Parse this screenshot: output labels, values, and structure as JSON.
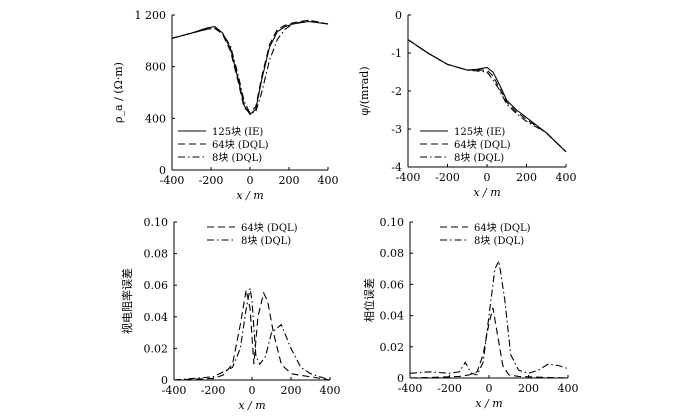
{
  "chart_data": [
    {
      "id": "rho",
      "type": "line",
      "title": "",
      "xlabel": "x / m",
      "ylabel": "ρ_a / (Ω·m)",
      "xlim": [
        -400,
        400
      ],
      "ylim": [
        0,
        1200
      ],
      "xticks": [
        "-400",
        "-200",
        "0",
        "200",
        "400"
      ],
      "yticks": [
        "0",
        "400",
        "800",
        "1 200"
      ],
      "legend_position": "bottom-left",
      "series": [
        {
          "name": "125块 (IE)",
          "style": "solid",
          "x": [
            -400,
            -300,
            -220,
            -180,
            -140,
            -100,
            -60,
            -30,
            0,
            30,
            60,
            100,
            140,
            180,
            220,
            300,
            400
          ],
          "y": [
            1020,
            1060,
            1100,
            1110,
            1060,
            940,
            700,
            500,
            430,
            470,
            700,
            950,
            1070,
            1110,
            1130,
            1150,
            1130
          ]
        },
        {
          "name": "64块 (DQL)",
          "style": "dashed",
          "x": [
            -400,
            -300,
            -220,
            -180,
            -140,
            -100,
            -60,
            -30,
            0,
            30,
            60,
            100,
            140,
            180,
            220,
            300,
            400
          ],
          "y": [
            1020,
            1060,
            1090,
            1100,
            1050,
            920,
            680,
            480,
            445,
            490,
            720,
            970,
            1090,
            1120,
            1140,
            1160,
            1130
          ]
        },
        {
          "name": "8块 (DQL)",
          "style": "dashdot",
          "x": [
            -400,
            -300,
            -220,
            -180,
            -140,
            -100,
            -60,
            -30,
            0,
            30,
            60,
            100,
            140,
            180,
            220,
            300,
            400
          ],
          "y": [
            1020,
            1060,
            1090,
            1095,
            1055,
            960,
            730,
            530,
            440,
            450,
            600,
            850,
            1010,
            1090,
            1130,
            1160,
            1130
          ]
        }
      ]
    },
    {
      "id": "phi",
      "type": "line",
      "title": "",
      "xlabel": "x / m",
      "ylabel": "φ/(mrad)",
      "xlim": [
        -400,
        400
      ],
      "ylim": [
        -4,
        0
      ],
      "xticks": [
        "-400",
        "-200",
        "0",
        "200",
        "400"
      ],
      "yticks": [
        "0",
        "-1",
        "-2",
        "-3",
        "-4"
      ],
      "legend_position": "bottom-right",
      "series": [
        {
          "name": "125块 (IE)",
          "style": "solid",
          "x": [
            -400,
            -300,
            -200,
            -100,
            -50,
            0,
            30,
            60,
            100,
            150,
            200,
            300,
            400
          ],
          "y": [
            -0.65,
            -1.0,
            -1.3,
            -1.45,
            -1.43,
            -1.38,
            -1.5,
            -1.8,
            -2.25,
            -2.5,
            -2.7,
            -3.1,
            -3.6
          ]
        },
        {
          "name": "64块 (DQL)",
          "style": "dashed",
          "x": [
            -400,
            -300,
            -200,
            -100,
            -50,
            0,
            30,
            60,
            100,
            150,
            200,
            300,
            400
          ],
          "y": [
            -0.65,
            -1.0,
            -1.3,
            -1.45,
            -1.45,
            -1.45,
            -1.6,
            -1.9,
            -2.3,
            -2.55,
            -2.75,
            -3.1,
            -3.6
          ]
        },
        {
          "name": "8块 (DQL)",
          "style": "dashdot",
          "x": [
            -400,
            -300,
            -200,
            -100,
            -50,
            0,
            30,
            60,
            100,
            150,
            200,
            300,
            400
          ],
          "y": [
            -0.65,
            -1.0,
            -1.3,
            -1.45,
            -1.47,
            -1.5,
            -1.7,
            -1.95,
            -2.35,
            -2.6,
            -2.8,
            -3.1,
            -3.6
          ]
        }
      ]
    },
    {
      "id": "rho_err",
      "type": "line",
      "title": "",
      "xlabel": "x / m",
      "ylabel": "视电阻率误差",
      "xlim": [
        -400,
        400
      ],
      "ylim": [
        0,
        0.1
      ],
      "xticks": [
        "-400",
        "-200",
        "0",
        "200",
        "400"
      ],
      "yticks": [
        "0",
        "0.02",
        "0.04",
        "0.06",
        "0.08",
        "0.10"
      ],
      "legend_position": "top",
      "series": [
        {
          "name": "64块 (DQL)",
          "style": "dashed",
          "x": [
            -400,
            -300,
            -200,
            -150,
            -100,
            -60,
            -30,
            -10,
            10,
            30,
            60,
            80,
            110,
            150,
            200,
            250,
            300,
            400
          ],
          "y": [
            0,
            0.0005,
            0.001,
            0.003,
            0.01,
            0.035,
            0.057,
            0.045,
            0.01,
            0.04,
            0.055,
            0.05,
            0.03,
            0.01,
            0.004,
            0.003,
            0.002,
            0
          ]
        },
        {
          "name": "8块 (DQL)",
          "style": "dashdot",
          "x": [
            -400,
            -300,
            -200,
            -150,
            -100,
            -60,
            -30,
            -10,
            0,
            20,
            40,
            70,
            100,
            150,
            200,
            250,
            300,
            400
          ],
          "y": [
            0,
            0.001,
            0.002,
            0.005,
            0.008,
            0.02,
            0.045,
            0.058,
            0.05,
            0.015,
            0.01,
            0.015,
            0.03,
            0.035,
            0.02,
            0.008,
            0.004,
            0
          ]
        }
      ]
    },
    {
      "id": "phase_err",
      "type": "line",
      "title": "",
      "xlabel": "x / m",
      "ylabel": "相位误差",
      "xlim": [
        -400,
        400
      ],
      "ylim": [
        0,
        0.1
      ],
      "xticks": [
        "-400",
        "-200",
        "0",
        "200",
        "400"
      ],
      "yticks": [
        "0",
        "0.02",
        "0.04",
        "0.06",
        "0.08",
        "0.10"
      ],
      "legend_position": "top",
      "series": [
        {
          "name": "64块 (DQL)",
          "style": "dashed",
          "x": [
            -400,
            -250,
            -150,
            -100,
            -60,
            -30,
            0,
            20,
            40,
            70,
            100,
            150,
            250,
            400
          ],
          "y": [
            0,
            0.0005,
            0.001,
            0.002,
            0.004,
            0.015,
            0.035,
            0.045,
            0.03,
            0.008,
            0.002,
            0.001,
            0.0005,
            0
          ]
        },
        {
          "name": "8块 (DQL)",
          "style": "dashdot",
          "x": [
            -400,
            -300,
            -200,
            -150,
            -120,
            -90,
            -60,
            -30,
            0,
            30,
            50,
            80,
            110,
            150,
            200,
            250,
            300,
            350,
            400
          ],
          "y": [
            0.003,
            0.004,
            0.003,
            0.004,
            0.01,
            0.003,
            0.002,
            0.01,
            0.04,
            0.07,
            0.075,
            0.05,
            0.015,
            0.005,
            0.003,
            0.005,
            0.009,
            0.008,
            0.006
          ]
        }
      ]
    }
  ]
}
